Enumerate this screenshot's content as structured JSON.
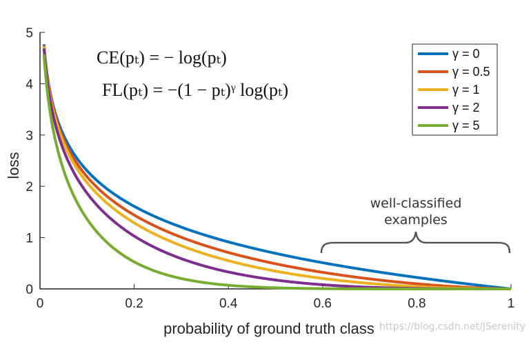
{
  "chart_data": {
    "type": "line",
    "title": "",
    "xlabel": "probability of ground truth class",
    "ylabel": "loss",
    "xlim": [
      0,
      1
    ],
    "ylim": [
      0,
      5
    ],
    "xticks": [
      "0",
      "0.2",
      "0.4",
      "0.6",
      "0.8",
      "1"
    ],
    "yticks": [
      "0",
      "1",
      "2",
      "3",
      "4",
      "5"
    ],
    "x": [
      0.01,
      0.05,
      0.1,
      0.2,
      0.3,
      0.4,
      0.5,
      0.6,
      0.7,
      0.8,
      0.9,
      1.0
    ],
    "series": [
      {
        "name": "γ = 0",
        "gamma": 0,
        "color": "#0072BD",
        "values": [
          4.61,
          3.0,
          2.3,
          1.61,
          1.2,
          0.92,
          0.69,
          0.51,
          0.36,
          0.22,
          0.11,
          0.0
        ]
      },
      {
        "name": "γ = 0.5",
        "gamma": 0.5,
        "color": "#D95319",
        "values": [
          4.58,
          2.92,
          2.18,
          1.44,
          1.01,
          0.71,
          0.49,
          0.32,
          0.2,
          0.1,
          0.03,
          0.0
        ]
      },
      {
        "name": "γ = 1",
        "gamma": 1,
        "color": "#EDB120",
        "values": [
          4.56,
          2.85,
          2.07,
          1.29,
          0.84,
          0.55,
          0.35,
          0.2,
          0.11,
          0.04,
          0.01,
          0.0
        ]
      },
      {
        "name": "γ = 2",
        "gamma": 2,
        "color": "#7E2F8E",
        "values": [
          4.51,
          2.71,
          1.87,
          1.03,
          0.59,
          0.33,
          0.17,
          0.08,
          0.03,
          0.01,
          0.0,
          0.0
        ]
      },
      {
        "name": "γ = 5",
        "gamma": 5,
        "color": "#77AC30",
        "values": [
          4.38,
          2.32,
          1.36,
          0.53,
          0.2,
          0.07,
          0.02,
          0.01,
          0.0,
          0.0,
          0.0,
          0.0
        ]
      }
    ],
    "legend": {
      "placement": "top-right"
    },
    "equations": {
      "ce": "CE(pₜ) = − log(pₜ)",
      "fl": "FL(pₜ) = −(1 − pₜ)ᵞ log(pₜ)"
    },
    "annotation": {
      "line1": "well-classified",
      "line2": "examples",
      "x_range": [
        0.6,
        1.0
      ]
    }
  },
  "watermark": "https://blog.csdn.net/JSerenity"
}
